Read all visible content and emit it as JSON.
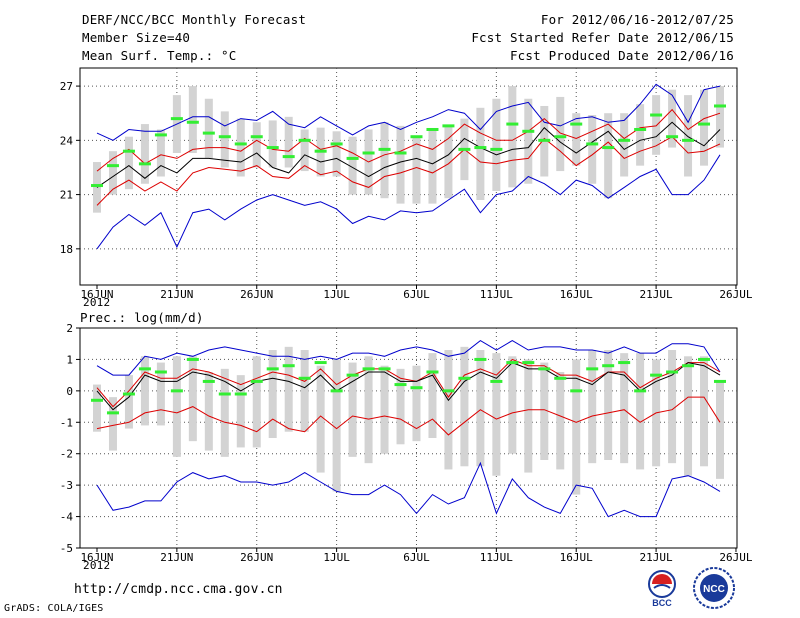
{
  "header": {
    "title": "DERF/NCC/BCC Monthly Forecast",
    "member_size": "Member Size=40",
    "variable": "Mean Surf. Temp.: °C",
    "period": "For 2012/06/16-2012/07/25",
    "start_date": "Fcst Started Refer Date 2012/06/15",
    "produced_date": "Fcst Produced Date 2012/06/16"
  },
  "footer": {
    "url": "http://cmdp.ncc.cma.gov.cn",
    "grads": "GrADS: COLA/IGES",
    "logo_bcc_label": "BCC",
    "logo_ncc_label": "NCC"
  },
  "colors": {
    "box": "#d3d3d3",
    "median": "#33ee33",
    "mean": "#000000",
    "spread": "#dd0000",
    "envelope": "#0000cc",
    "grid": "#555555"
  },
  "chart_data": [
    {
      "type": "box-ensemble",
      "title": "Mean Surf. Temp.: °C",
      "x_ticks": [
        "16JUN",
        "21JUN",
        "26JUN",
        "1JUL",
        "6JUL",
        "11JUL",
        "16JUL",
        "21JUL",
        "26JUL"
      ],
      "x_year_label": "2012",
      "ylim": [
        16,
        28
      ],
      "y_ticks": [
        18,
        21,
        24,
        27
      ],
      "days": 40,
      "box_low": [
        20.0,
        21.0,
        21.3,
        21.6,
        22.0,
        23.3,
        23.3,
        23.0,
        22.5,
        22.0,
        22.5,
        22.5,
        22.5,
        22.3,
        22.0,
        22.0,
        21.0,
        21.0,
        20.8,
        20.5,
        20.5,
        20.5,
        20.8,
        21.8,
        20.7,
        21.2,
        21.4,
        21.6,
        22.0,
        22.3,
        22.6,
        21.6,
        20.8,
        22.0,
        22.6,
        23.2,
        23.6,
        22.0,
        22.6,
        23.6
      ],
      "box_high": [
        22.8,
        23.4,
        24.2,
        24.9,
        24.6,
        26.5,
        27.0,
        26.3,
        25.6,
        25.2,
        25.0,
        25.1,
        25.3,
        24.6,
        24.7,
        24.5,
        24.2,
        24.6,
        25.0,
        24.8,
        24.2,
        24.6,
        24.8,
        25.2,
        25.8,
        26.3,
        27.0,
        26.3,
        25.9,
        26.4,
        25.5,
        25.4,
        25.5,
        25.5,
        26.0,
        26.5,
        26.8,
        26.5,
        26.8,
        27.0
      ],
      "median": [
        21.5,
        22.6,
        23.4,
        22.7,
        24.3,
        25.2,
        25.0,
        24.4,
        24.2,
        23.8,
        24.2,
        23.6,
        23.1,
        24.0,
        23.4,
        23.8,
        23.0,
        23.3,
        23.5,
        23.3,
        24.2,
        24.6,
        24.8,
        23.5,
        23.6,
        23.5,
        24.9,
        24.5,
        24.0,
        24.2,
        24.9,
        23.8,
        23.6,
        24.0,
        24.6,
        25.4,
        24.2,
        24.0,
        24.9,
        25.9
      ],
      "mean": [
        21.4,
        22.0,
        22.6,
        21.9,
        22.6,
        22.2,
        23.0,
        23.0,
        22.9,
        22.8,
        23.3,
        22.5,
        22.2,
        23.2,
        22.8,
        23.0,
        22.5,
        22.0,
        22.5,
        22.8,
        23.0,
        22.7,
        23.2,
        24.1,
        23.6,
        23.2,
        23.5,
        23.6,
        24.7,
        23.9,
        23.3,
        23.9,
        24.5,
        23.5,
        24.0,
        24.2,
        25.0,
        24.2,
        23.7,
        24.6
      ],
      "upper_spread": [
        22.3,
        23.0,
        23.5,
        22.7,
        23.2,
        23.0,
        23.5,
        23.6,
        23.6,
        23.4,
        24.0,
        23.5,
        23.4,
        24.1,
        23.5,
        23.7,
        23.3,
        22.8,
        23.2,
        23.4,
        23.8,
        23.5,
        24.1,
        24.9,
        24.4,
        24.0,
        24.0,
        24.5,
        25.2,
        24.4,
        24.1,
        24.5,
        24.9,
        24.1,
        24.7,
        24.8,
        25.7,
        24.6,
        25.2,
        25.5
      ],
      "lower_spread": [
        20.4,
        21.3,
        21.8,
        21.2,
        21.7,
        21.2,
        22.2,
        22.5,
        22.4,
        22.3,
        22.6,
        22.0,
        21.9,
        22.6,
        22.1,
        22.3,
        21.7,
        21.4,
        22.0,
        22.2,
        22.5,
        22.2,
        22.7,
        23.5,
        22.8,
        22.7,
        22.9,
        23.0,
        24.1,
        23.4,
        22.6,
        23.2,
        23.9,
        23.0,
        23.4,
        23.7,
        24.2,
        23.3,
        23.4,
        23.8
      ],
      "upper_envelope": [
        24.4,
        24.0,
        24.6,
        24.5,
        24.5,
        24.9,
        25.3,
        25.3,
        24.8,
        25.2,
        25.1,
        25.6,
        24.9,
        24.7,
        25.3,
        24.8,
        24.3,
        24.8,
        25.0,
        24.6,
        25.0,
        25.3,
        25.7,
        25.5,
        24.6,
        25.6,
        25.9,
        26.1,
        25.0,
        24.8,
        25.2,
        25.3,
        25.0,
        25.1,
        26.0,
        27.1,
        26.5,
        25.0,
        26.8,
        27.0
      ],
      "lower_envelope": [
        18.0,
        19.2,
        19.9,
        19.3,
        20.0,
        18.1,
        20.0,
        20.2,
        19.6,
        20.2,
        20.7,
        21.0,
        20.7,
        20.4,
        20.6,
        20.2,
        19.4,
        19.8,
        19.6,
        20.1,
        20.0,
        20.1,
        20.7,
        21.3,
        20.0,
        21.0,
        21.2,
        22.0,
        21.6,
        21.0,
        21.8,
        21.5,
        20.8,
        21.4,
        22.0,
        22.4,
        21.0,
        21.0,
        21.8,
        23.2
      ]
    },
    {
      "type": "box-ensemble",
      "title": "Prec.: log(mm/d)",
      "x_ticks": [
        "16JUN",
        "21JUN",
        "26JUN",
        "1JUL",
        "6JUL",
        "11JUL",
        "16JUL",
        "21JUL",
        "26JUL"
      ],
      "x_year_label": "2012",
      "ylim": [
        -5,
        2
      ],
      "y_ticks": [
        -5,
        -4,
        -3,
        -2,
        -1,
        0,
        1,
        2
      ],
      "days": 40,
      "box_low": [
        -1.3,
        -1.9,
        -1.2,
        -1.1,
        -1.1,
        -2.1,
        -1.6,
        -1.9,
        -2.1,
        -1.8,
        -1.8,
        -1.5,
        -1.3,
        -1.3,
        -2.6,
        -3.2,
        -2.1,
        -2.3,
        -2.0,
        -1.7,
        -1.6,
        -1.5,
        -2.5,
        -2.4,
        -2.4,
        -2.7,
        -2.0,
        -2.6,
        -2.2,
        -2.5,
        -3.3,
        -2.3,
        -2.2,
        -2.3,
        -2.5,
        -2.4,
        -2.3,
        -2.7,
        -2.4,
        -2.8
      ],
      "box_high": [
        0.2,
        -0.2,
        0.5,
        1.1,
        0.9,
        1.1,
        1.1,
        0.6,
        0.7,
        0.5,
        1.1,
        1.3,
        1.4,
        1.3,
        0.8,
        1.0,
        0.9,
        1.1,
        0.8,
        0.7,
        0.8,
        1.2,
        1.3,
        1.4,
        1.3,
        1.2,
        1.1,
        1.0,
        0.9,
        0.6,
        1.0,
        1.3,
        1.3,
        1.2,
        1.2,
        1.0,
        1.3,
        1.1,
        1.1,
        0.3
      ],
      "median": [
        -0.3,
        -0.7,
        -0.1,
        0.7,
        0.6,
        0.0,
        1.0,
        0.3,
        -0.1,
        -0.1,
        0.3,
        0.7,
        0.8,
        0.4,
        0.9,
        0.0,
        0.5,
        0.7,
        0.7,
        0.2,
        0.1,
        0.6,
        0.0,
        0.4,
        1.0,
        0.3,
        0.9,
        0.9,
        0.7,
        0.4,
        0.0,
        0.7,
        0.8,
        0.9,
        0.0,
        0.5,
        0.6,
        0.8,
        1.0,
        0.3
      ],
      "mean": [
        0.0,
        -0.6,
        -0.2,
        0.5,
        0.3,
        0.3,
        0.6,
        0.5,
        0.3,
        0.0,
        0.3,
        0.4,
        0.3,
        0.1,
        0.5,
        0.0,
        0.3,
        0.6,
        0.6,
        0.3,
        0.3,
        0.5,
        -0.3,
        0.3,
        0.6,
        0.4,
        0.9,
        0.7,
        0.7,
        0.4,
        0.4,
        0.2,
        0.6,
        0.5,
        0.0,
        0.3,
        0.5,
        0.9,
        0.8,
        0.5
      ],
      "upper_spread": [
        0.1,
        -0.5,
        0.0,
        0.6,
        0.4,
        0.4,
        0.7,
        0.6,
        0.4,
        0.2,
        0.4,
        0.6,
        0.5,
        0.3,
        0.7,
        0.2,
        0.5,
        0.7,
        0.7,
        0.4,
        0.3,
        0.6,
        -0.2,
        0.5,
        0.7,
        0.5,
        1.0,
        0.8,
        0.8,
        0.5,
        0.5,
        0.3,
        0.6,
        0.6,
        0.1,
        0.4,
        0.6,
        0.9,
        0.9,
        0.6
      ],
      "lower_spread": [
        -1.2,
        -1.1,
        -1.0,
        -0.7,
        -0.6,
        -0.7,
        -0.5,
        -0.8,
        -1.0,
        -1.1,
        -1.3,
        -0.9,
        -1.2,
        -1.3,
        -0.8,
        -1.2,
        -0.8,
        -0.9,
        -0.8,
        -0.9,
        -1.2,
        -0.9,
        -1.4,
        -1.0,
        -0.6,
        -0.9,
        -0.7,
        -0.6,
        -0.6,
        -0.8,
        -1.0,
        -0.8,
        -0.7,
        -0.6,
        -1.0,
        -0.7,
        -0.6,
        -0.2,
        -0.2,
        -1.0
      ],
      "upper_envelope": [
        0.8,
        0.5,
        0.5,
        1.1,
        1.0,
        1.2,
        1.1,
        1.3,
        1.4,
        1.3,
        1.2,
        1.1,
        1.1,
        1.0,
        1.1,
        1.0,
        1.2,
        1.2,
        1.1,
        1.3,
        1.4,
        1.3,
        1.1,
        1.2,
        1.6,
        1.3,
        1.6,
        1.3,
        1.4,
        1.4,
        1.3,
        1.3,
        1.2,
        1.4,
        1.2,
        1.2,
        1.5,
        1.5,
        1.4,
        0.6
      ],
      "lower_envelope": [
        -3.0,
        -3.8,
        -3.7,
        -3.5,
        -3.5,
        -2.9,
        -2.6,
        -2.8,
        -2.7,
        -2.9,
        -2.9,
        -3.0,
        -2.9,
        -2.6,
        -2.9,
        -3.2,
        -3.3,
        -3.3,
        -3.0,
        -3.3,
        -3.9,
        -3.3,
        -3.6,
        -3.4,
        -2.3,
        -3.9,
        -2.8,
        -3.4,
        -3.7,
        -3.9,
        -3.0,
        -3.1,
        -4.0,
        -3.8,
        -4.0,
        -4.0,
        -2.8,
        -2.7,
        -2.9,
        -3.2
      ]
    }
  ]
}
